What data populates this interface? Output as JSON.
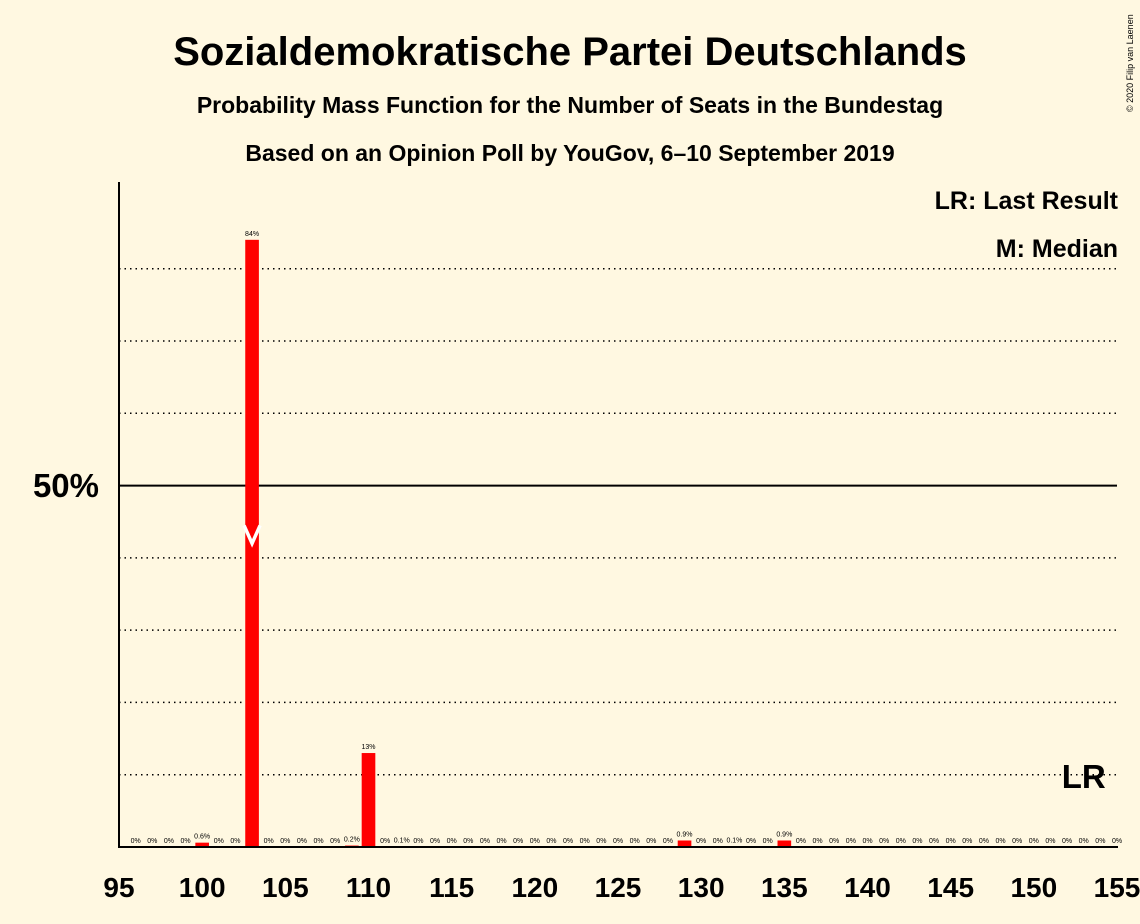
{
  "chart_data": {
    "type": "bar",
    "title": "Sozialdemokratische Partei Deutschlands",
    "subtitle": "Probability Mass Function for the Number of Seats in the Bundestag",
    "subtitle2": "Based on an Opinion Poll by YouGov, 6–10 September 2019",
    "copyright": "© 2020 Filip van Laenen",
    "legend": {
      "lr": "LR: Last Result",
      "m": "M: Median",
      "placement": "top-right"
    },
    "xlim": [
      95,
      155
    ],
    "ylim": [
      0,
      92
    ],
    "x_ticks": [
      95,
      100,
      105,
      110,
      115,
      120,
      125,
      130,
      135,
      140,
      145,
      150,
      155
    ],
    "y_major": {
      "value": 50,
      "label": "50%"
    },
    "y_gridlines": [
      10,
      20,
      30,
      40,
      60,
      70,
      80
    ],
    "bar_color": "#FF0000",
    "median_seat": 103,
    "median_marker_y": 42,
    "last_result_seat": 153,
    "last_result_label": "LR",
    "x": [
      96,
      97,
      98,
      99,
      100,
      101,
      102,
      103,
      104,
      105,
      106,
      107,
      108,
      109,
      110,
      111,
      112,
      113,
      114,
      115,
      116,
      117,
      118,
      119,
      120,
      121,
      122,
      123,
      124,
      125,
      126,
      127,
      128,
      129,
      130,
      131,
      132,
      133,
      134,
      135,
      136,
      137,
      138,
      139,
      140,
      141,
      142,
      143,
      144,
      145,
      146,
      147,
      148,
      149,
      150,
      151,
      152,
      153,
      154,
      155
    ],
    "values": [
      0,
      0,
      0,
      0,
      0.6,
      0,
      0,
      84,
      0,
      0,
      0,
      0,
      0,
      0.2,
      13,
      0,
      0.1,
      0,
      0,
      0,
      0,
      0,
      0,
      0,
      0,
      0,
      0,
      0,
      0,
      0,
      0,
      0,
      0,
      0.9,
      0,
      0,
      0.1,
      0,
      0,
      0.9,
      0,
      0,
      0,
      0,
      0,
      0,
      0,
      0,
      0,
      0,
      0,
      0,
      0,
      0,
      0,
      0,
      0,
      0,
      0,
      0
    ],
    "labels": [
      "0%",
      "0%",
      "0%",
      "0%",
      "0.6%",
      "0%",
      "0%",
      "84%",
      "0%",
      "0%",
      "0%",
      "0%",
      "0%",
      "0.2%",
      "13%",
      "0%",
      "0.1%",
      "0%",
      "0%",
      "0%",
      "0%",
      "0%",
      "0%",
      "0%",
      "0%",
      "0%",
      "0%",
      "0%",
      "0%",
      "0%",
      "0%",
      "0%",
      "0%",
      "0.9%",
      "0%",
      "0%",
      "0.1%",
      "0%",
      "0%",
      "0.9%",
      "0%",
      "0%",
      "0%",
      "0%",
      "0%",
      "0%",
      "0%",
      "0%",
      "0%",
      "0%",
      "0%",
      "0%",
      "0%",
      "0%",
      "0%",
      "0%",
      "0%",
      "0%",
      "0%",
      "0%"
    ]
  }
}
